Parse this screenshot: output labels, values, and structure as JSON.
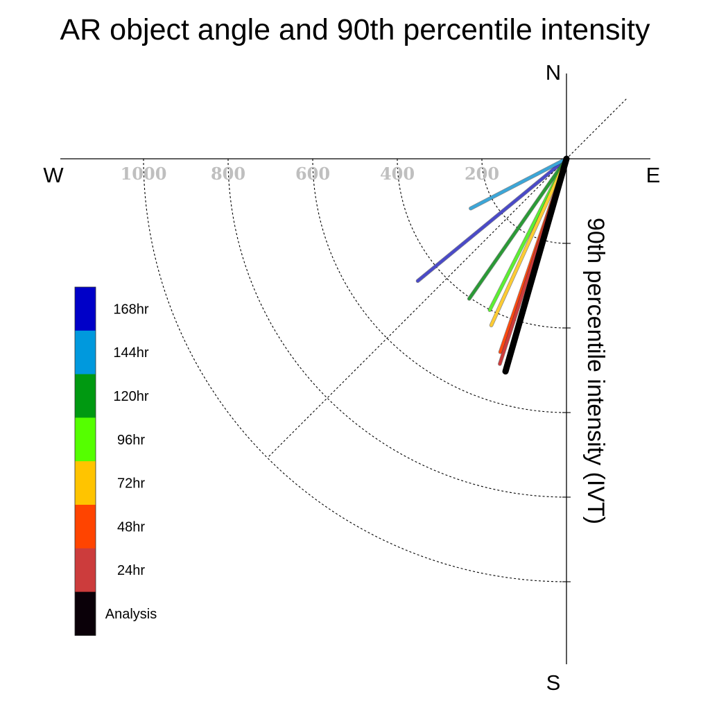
{
  "chart_data": {
    "type": "polar-line",
    "title": "AR object angle and 90th percentile intensity",
    "ylabel": "90th percentile intensity (IVT)",
    "compass": {
      "north": "N",
      "south": "S",
      "east": "E",
      "west": "W"
    },
    "radial_ticks": [
      "200",
      "400",
      "600",
      "800",
      "1000"
    ],
    "radial_tick_values": [
      200,
      400,
      600,
      800,
      1000
    ],
    "rmax": 1200,
    "series": [
      {
        "name": "168hr",
        "color": "#4a4ac8",
        "angle_deg": 230.6,
        "intensity": 455
      },
      {
        "name": "144hr",
        "color": "#3ba6d8",
        "angle_deg": 242.6,
        "intensity": 255
      },
      {
        "name": "120hr",
        "color": "#2a9b36",
        "angle_deg": 214.8,
        "intensity": 403
      },
      {
        "name": "96hr",
        "color": "#5cf032",
        "angle_deg": 206.9,
        "intensity": 401
      },
      {
        "name": "72hr",
        "color": "#ffcc33",
        "angle_deg": 204.3,
        "intensity": 432
      },
      {
        "name": "48hr",
        "color": "#ff4a10",
        "angle_deg": 198.9,
        "intensity": 483
      },
      {
        "name": "24hr",
        "color": "#cc3c3c",
        "angle_deg": 198.0,
        "intensity": 510
      },
      {
        "name": "Analysis",
        "color": "#000000",
        "angle_deg": 196.0,
        "intensity": 523
      }
    ],
    "legend": [
      {
        "label": "168hr",
        "color": "#0000c8"
      },
      {
        "label": "144hr",
        "color": "#0099dd"
      },
      {
        "label": "120hr",
        "color": "#009911"
      },
      {
        "label": "96hr",
        "color": "#55ff00"
      },
      {
        "label": "72hr",
        "color": "#ffc400"
      },
      {
        "label": "48hr",
        "color": "#ff4400"
      },
      {
        "label": "24hr",
        "color": "#cc3c3c"
      },
      {
        "label": "Analysis",
        "color": "#0a0008"
      }
    ]
  }
}
